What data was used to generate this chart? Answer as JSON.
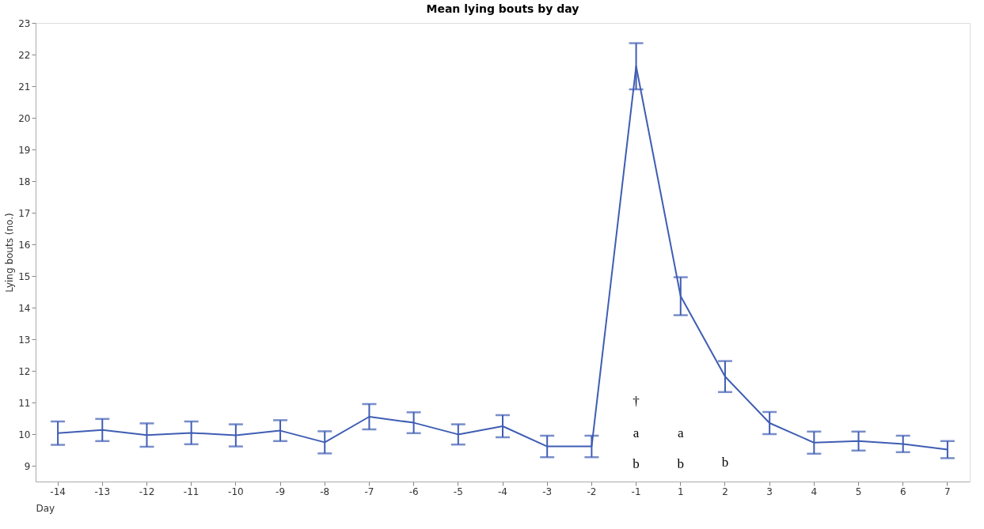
{
  "chart_data": {
    "type": "line",
    "title": "Mean lying bouts by day",
    "xlabel": "Day",
    "ylabel": "Lying bouts (no.)",
    "categories": [
      "-14",
      "-13",
      "-12",
      "-11",
      "-10",
      "-9",
      "-8",
      "-7",
      "-6",
      "-5",
      "-4",
      "-3",
      "-2",
      "-1",
      "1",
      "2",
      "3",
      "4",
      "5",
      "6",
      "7"
    ],
    "series": [
      {
        "color": "#3f5db3",
        "values": [
          10.03,
          10.13,
          9.97,
          10.04,
          9.96,
          10.11,
          9.74,
          10.55,
          10.36,
          9.99,
          10.25,
          9.61,
          9.61,
          21.63,
          14.36,
          11.82,
          10.35,
          9.73,
          9.78,
          9.69,
          9.51
        ],
        "errors": [
          0.37,
          0.35,
          0.37,
          0.36,
          0.35,
          0.33,
          0.35,
          0.4,
          0.33,
          0.32,
          0.35,
          0.34,
          0.34,
          0.73,
          0.6,
          0.49,
          0.35,
          0.35,
          0.3,
          0.26,
          0.27
        ]
      }
    ],
    "ylim": [
      8.5,
      23
    ],
    "yticks": [
      9,
      10,
      11,
      12,
      13,
      14,
      15,
      16,
      17,
      18,
      19,
      20,
      21,
      22,
      23
    ],
    "grid": false,
    "marker": "none",
    "line_style": "solid",
    "annotations": [
      "†",
      "a",
      "a",
      "b",
      "b",
      "b"
    ]
  }
}
